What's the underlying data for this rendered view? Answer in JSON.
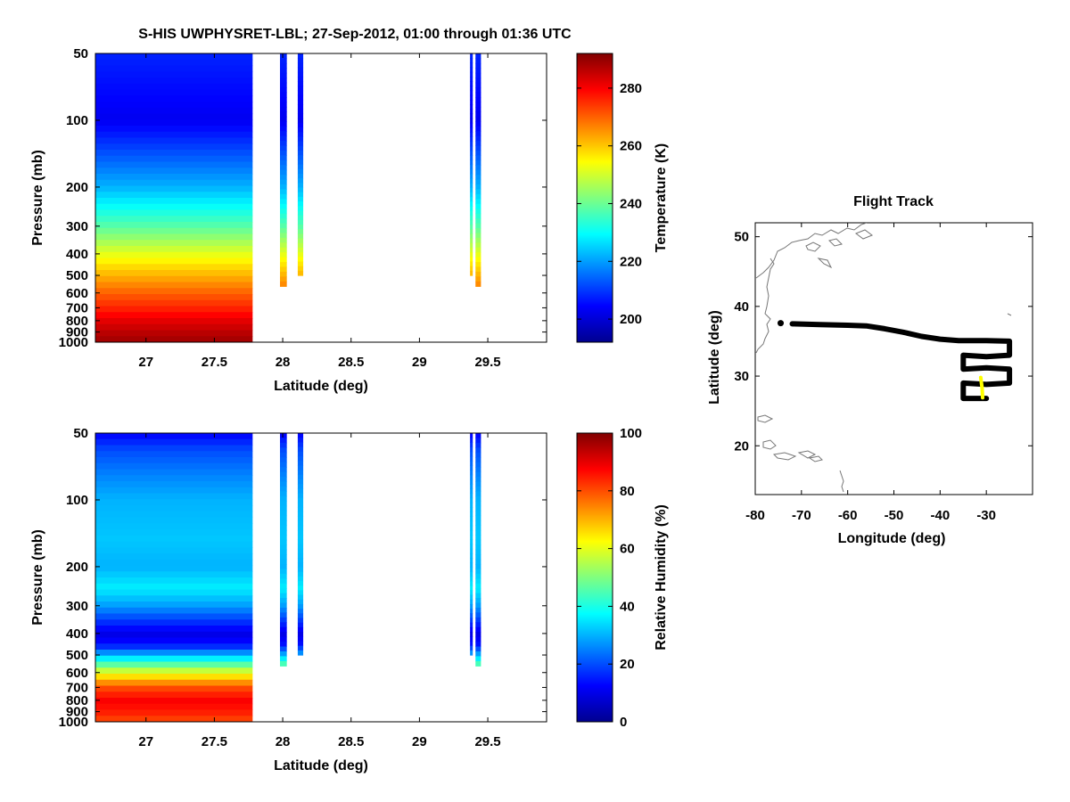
{
  "title": "S-HIS UWPHYSRET-LBL;   27-Sep-2012, 01:00 through 01:36 UTC",
  "chart_data": [
    {
      "type": "heatmap",
      "panel": "temperature",
      "xlabel": "Latitude (deg)",
      "ylabel": "Pressure (mb)",
      "xlim": [
        26.63,
        29.93
      ],
      "ylim": [
        50,
        1000
      ],
      "yscale": "log",
      "yreversed": true,
      "xticks": [
        27,
        27.5,
        28,
        28.5,
        29,
        29.5
      ],
      "xticklabels": [
        "27",
        "27.5",
        "28",
        "28.5",
        "29",
        "29.5"
      ],
      "yticks": [
        50,
        100,
        200,
        300,
        400,
        500,
        600,
        700,
        800,
        900,
        1000
      ],
      "colorbar": {
        "label": "Temperature (K)",
        "range": [
          192,
          292
        ],
        "ticks": [
          200,
          220,
          240,
          260,
          280
        ],
        "colormap": "jet"
      },
      "profile": {
        "pressure": [
          50,
          100,
          200,
          300,
          400,
          500,
          600,
          700,
          800,
          900,
          1000
        ],
        "value": [
          208,
          203,
          222,
          238,
          252,
          262,
          270,
          276,
          282,
          286,
          289
        ]
      },
      "data_columns": [
        {
          "lat_start": 26.63,
          "lat_end": 27.78,
          "p_top": 50,
          "p_bottom": 1000
        },
        {
          "lat_start": 27.98,
          "lat_end": 28.03,
          "p_top": 50,
          "p_bottom": 560
        },
        {
          "lat_start": 28.11,
          "lat_end": 28.15,
          "p_top": 50,
          "p_bottom": 500
        },
        {
          "lat_start": 29.37,
          "lat_end": 29.39,
          "p_top": 50,
          "p_bottom": 500
        },
        {
          "lat_start": 29.41,
          "lat_end": 29.45,
          "p_top": 50,
          "p_bottom": 560
        }
      ]
    },
    {
      "type": "heatmap",
      "panel": "relative_humidity",
      "xlabel": "Latitude (deg)",
      "ylabel": "Pressure (mb)",
      "xlim": [
        26.63,
        29.93
      ],
      "ylim": [
        50,
        1000
      ],
      "yscale": "log",
      "yreversed": true,
      "xticks": [
        27,
        27.5,
        28,
        28.5,
        29,
        29.5
      ],
      "xticklabels": [
        "27",
        "27.5",
        "28",
        "28.5",
        "29",
        "29.5"
      ],
      "yticks": [
        50,
        100,
        200,
        300,
        400,
        500,
        600,
        700,
        800,
        900,
        1000
      ],
      "colorbar": {
        "label": "Relative Humidity (%)",
        "range": [
          0,
          100
        ],
        "ticks": [
          0,
          20,
          40,
          60,
          80,
          100
        ],
        "colormap": "jet"
      },
      "profile": {
        "pressure": [
          50,
          60,
          80,
          100,
          150,
          200,
          250,
          300,
          350,
          400,
          450,
          500,
          600,
          700,
          800,
          900,
          1000
        ],
        "value": [
          12,
          20,
          26,
          30,
          32,
          30,
          36,
          28,
          18,
          10,
          14,
          30,
          60,
          80,
          88,
          85,
          80
        ]
      },
      "data_columns": [
        {
          "lat_start": 26.63,
          "lat_end": 27.78,
          "p_top": 50,
          "p_bottom": 1000
        },
        {
          "lat_start": 27.98,
          "lat_end": 28.03,
          "p_top": 50,
          "p_bottom": 560
        },
        {
          "lat_start": 28.11,
          "lat_end": 28.15,
          "p_top": 50,
          "p_bottom": 500
        },
        {
          "lat_start": 29.37,
          "lat_end": 29.39,
          "p_top": 50,
          "p_bottom": 500
        },
        {
          "lat_start": 29.41,
          "lat_end": 29.45,
          "p_top": 50,
          "p_bottom": 560
        }
      ]
    },
    {
      "type": "scatter",
      "panel": "flight_track",
      "title": "Flight Track",
      "xlabel": "Longitude (deg)",
      "ylabel": "Latitude (deg)",
      "xlim": [
        -80,
        -20
      ],
      "ylim": [
        13,
        52
      ],
      "xticks": [
        -80,
        -70,
        -60,
        -50,
        -40,
        -30
      ],
      "yticks": [
        20,
        30,
        40,
        50
      ],
      "track": {
        "color": "#000000",
        "lon": [
          -72,
          -66,
          -60,
          -56,
          -52,
          -48,
          -44,
          -40,
          -36,
          -30,
          -25,
          -25,
          -30,
          -35,
          -35,
          -30,
          -25,
          -25,
          -30,
          -35,
          -35,
          -30
        ],
        "lat": [
          37.5,
          37.4,
          37.3,
          37.2,
          36.8,
          36.3,
          35.7,
          35.3,
          35.1,
          35.1,
          35.0,
          33.0,
          32.8,
          33.0,
          31.0,
          31.2,
          31.0,
          29.0,
          28.8,
          29.0,
          26.8,
          26.8
        ]
      },
      "highlight_segment": {
        "color": "#ffff00",
        "lon": [
          -31.2,
          -30.9,
          -30.8
        ],
        "lat": [
          29.8,
          28.2,
          26.9
        ]
      },
      "start_marker": {
        "lon": -74.5,
        "lat": 37.6
      }
    }
  ]
}
